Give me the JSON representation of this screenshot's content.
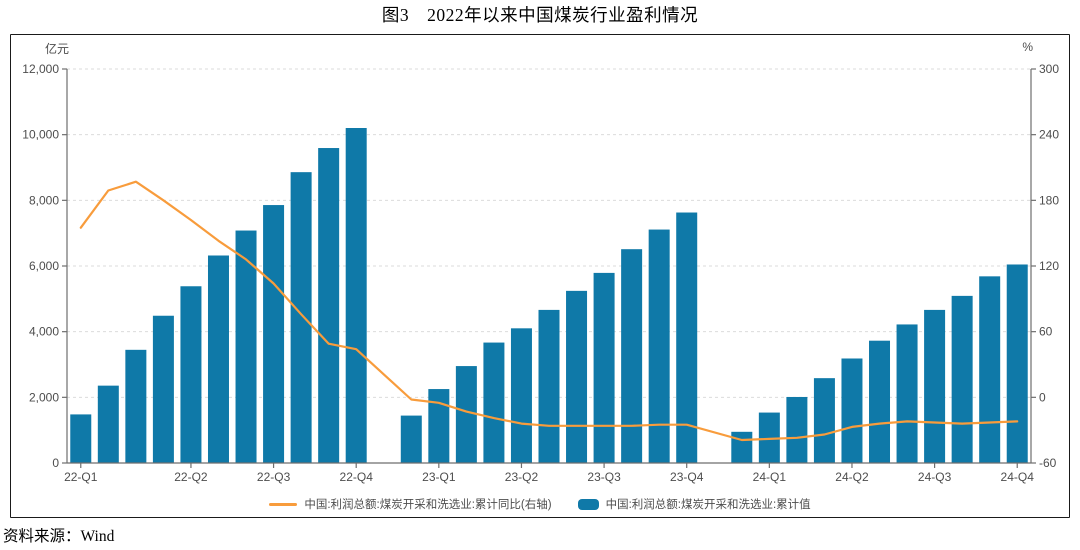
{
  "figure": {
    "title": "图3　2022年以来中国煤炭行业盈利情况",
    "source": "资料来源：Wind"
  },
  "chart_data": {
    "type": "bar+line combo",
    "title": "图3　2022年以来中国煤炭行业盈利情况",
    "grid": true,
    "legend_position": "bottom",
    "colors": {
      "bar": "#0F79A8",
      "line": "#F89C3C",
      "gridline": "#DBDBDB",
      "axis": "#6e6e6e",
      "tick_text": "#4d4d4d"
    },
    "left_axis": {
      "unit": "亿元",
      "min": 0,
      "max": 12000,
      "tick_values": [
        12000,
        10000,
        8000,
        6000,
        4000,
        2000,
        0
      ],
      "tick_labels": [
        "12,000",
        "10,000",
        "8,000",
        "6,000",
        "4,000",
        "2,000",
        "0"
      ]
    },
    "right_axis": {
      "unit": "%",
      "min": -60,
      "max": 300,
      "tick_values": [
        300,
        240,
        180,
        120,
        60,
        0,
        -60
      ],
      "tick_labels": [
        "300",
        "240",
        "180",
        "120",
        "60",
        "0",
        "-60"
      ]
    },
    "months": [
      "2022-02",
      "2022-03",
      "2022-04",
      "2022-05",
      "2022-06",
      "2022-07",
      "2022-08",
      "2022-09",
      "2022-10",
      "2022-11",
      "2022-12",
      "2023-01",
      "2023-02",
      "2023-03",
      "2023-04",
      "2023-05",
      "2023-06",
      "2023-07",
      "2023-08",
      "2023-09",
      "2023-10",
      "2023-11",
      "2023-12",
      "2024-01",
      "2024-02",
      "2024-03",
      "2024-04",
      "2024-05",
      "2024-06",
      "2024-07",
      "2024-08",
      "2024-09",
      "2024-10",
      "2024-11",
      "2024-12"
    ],
    "x_ticks": [
      {
        "label": "22-Q1",
        "slot": 0
      },
      {
        "label": "22-Q2",
        "slot": 4
      },
      {
        "label": "22-Q3",
        "slot": 7
      },
      {
        "label": "22-Q4",
        "slot": 10
      },
      {
        "label": "23-Q1",
        "slot": 13
      },
      {
        "label": "23-Q2",
        "slot": 16
      },
      {
        "label": "23-Q3",
        "slot": 19
      },
      {
        "label": "23-Q4",
        "slot": 22
      },
      {
        "label": "24-Q1",
        "slot": 25
      },
      {
        "label": "24-Q2",
        "slot": 28
      },
      {
        "label": "24-Q3",
        "slot": 31
      },
      {
        "label": "24-Q4",
        "slot": 34
      }
    ],
    "series": [
      {
        "name": "中国:利润总额:煤炭开采和洗选业:累计同比(右轴)",
        "type": "line",
        "axis": "right",
        "color": "#F89C3C",
        "values": [
          155,
          189,
          197,
          180,
          162,
          143,
          126,
          104,
          76,
          49,
          44,
          null,
          -2,
          -5,
          -13,
          -19,
          -24,
          -26,
          -26,
          -26,
          -26,
          -25,
          -25,
          null,
          -39,
          -38,
          -37,
          -34,
          -27,
          -24,
          -22,
          -23,
          -24,
          -23,
          -22
        ]
      },
      {
        "name": "中国:利润总额:煤炭开采和洗选业:累计值",
        "type": "bar",
        "axis": "left",
        "color": "#0F79A8",
        "values": [
          1480,
          2356,
          3447,
          4485,
          5383,
          6320,
          7080,
          7856,
          8858,
          9593,
          10203,
          null,
          1444,
          2252,
          2952,
          3668,
          4102,
          4663,
          5243,
          5790,
          6512,
          7110,
          7629,
          null,
          950,
          1536,
          2011,
          2584,
          3183,
          3725,
          4220,
          4663,
          5090,
          5685,
          6046
        ]
      }
    ]
  }
}
